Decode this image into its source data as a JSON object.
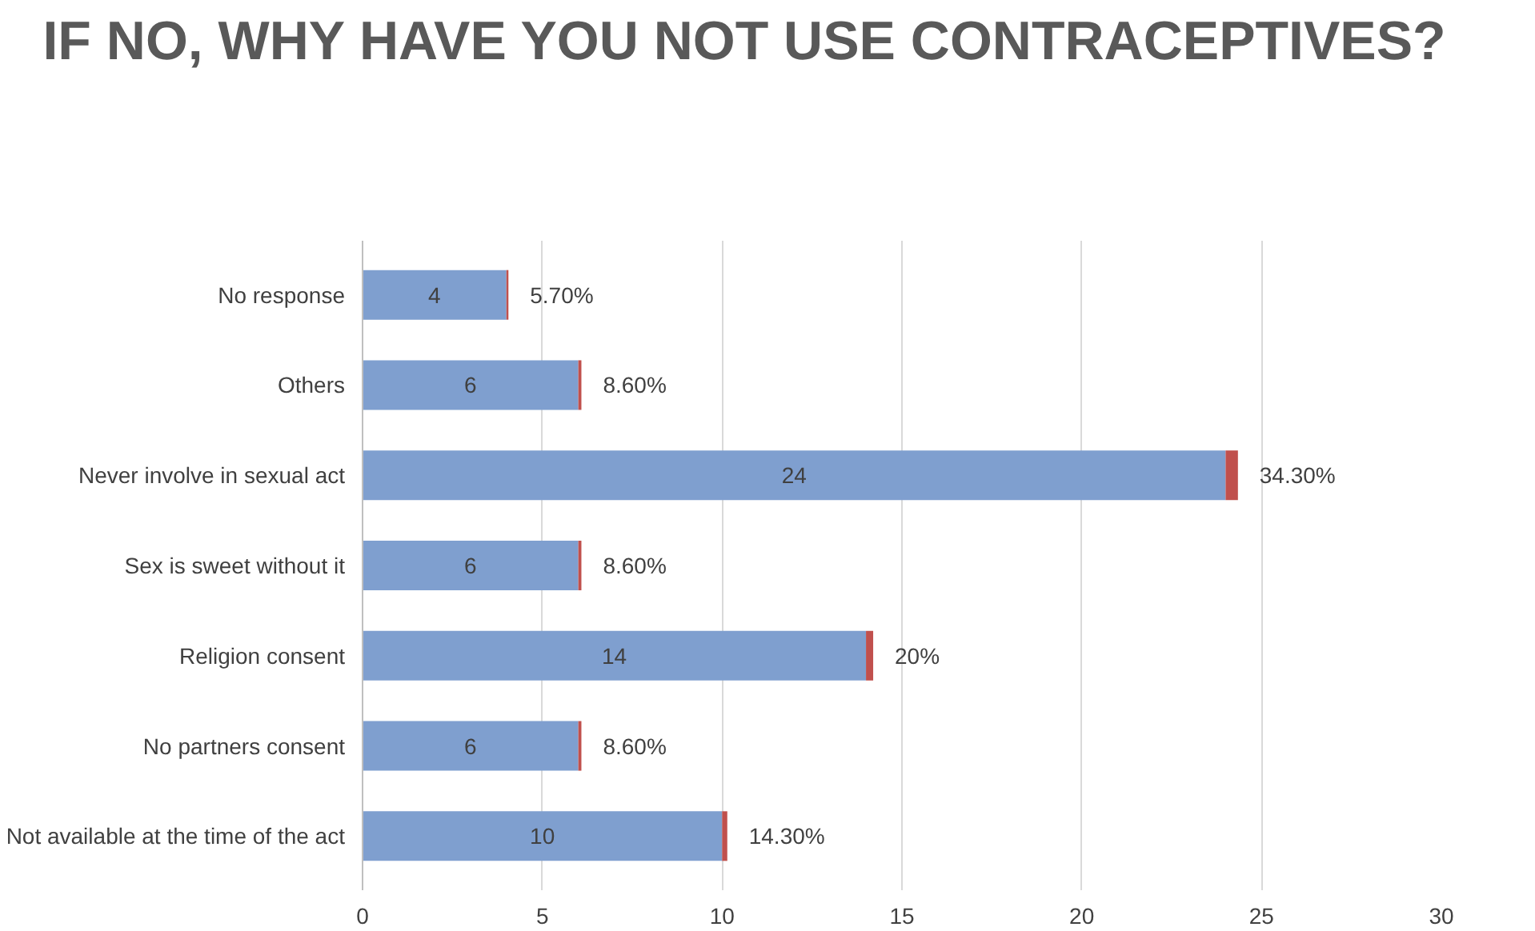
{
  "chart_data": {
    "type": "bar",
    "orientation": "horizontal",
    "stacked": true,
    "title": "IF NO, WHY HAVE YOU NOT USE CONTRACEPTIVES?",
    "categories": [
      "No response",
      "Others",
      "Never involve in sexual act",
      "Sex is sweet without it",
      "Religion consent",
      "No partners consent",
      "Not available at the time of the act"
    ],
    "series": [
      {
        "color": "#7f9fcf",
        "values": [
          4,
          6,
          24,
          6,
          14,
          6,
          10
        ],
        "value_labels": [
          "4",
          "6",
          "24",
          "6",
          "14",
          "6",
          "10"
        ]
      },
      {
        "color": "#c0504d",
        "values": [
          0.057,
          0.086,
          0.343,
          0.086,
          0.2,
          0.086,
          0.143
        ],
        "value_labels": [
          "5.70%",
          "8.60%",
          "34.30%",
          "8.60%",
          "20%",
          "8.60%",
          "14.30%"
        ]
      }
    ],
    "xlim": [
      0,
      30
    ],
    "xticks": [
      0,
      5,
      10,
      15,
      20,
      25,
      30
    ],
    "grid": "x"
  }
}
